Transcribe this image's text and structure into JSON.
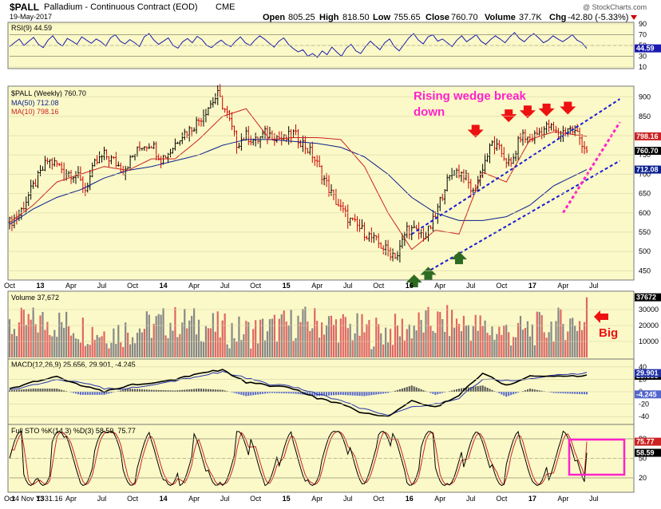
{
  "header": {
    "symbol": "$PALL",
    "name": "Palladium - Continuous Contract (EOD)",
    "exchange": "CME",
    "date": "19-May-2017",
    "watermark": "@ StockCharts.com",
    "open_label": "Open",
    "open": "805.25",
    "high_label": "High",
    "high": "818.50",
    "low_label": "Low",
    "low": "755.65",
    "close_label": "Close",
    "close": "760.70",
    "volume_label": "Volume",
    "volume": "37.7K",
    "chg_label": "Chg",
    "chg": "-42.80 (-5.33%)"
  },
  "footer": {
    "readout": "14 Nov Y:-31.16"
  },
  "annotations": {
    "wedge_text_line1": "Rising wedge break",
    "wedge_text_line2": "down",
    "big_text": "Big"
  },
  "colors": {
    "panel_bg": "#fbf9c7",
    "price_up": "#000000",
    "price_down": "#cc0000",
    "ma50": "#0a1f8f",
    "ma10": "#cc2222",
    "annotation": "#ff22cc",
    "arrow_red": "#ee1111",
    "arrow_green": "#2e6b22",
    "trendline": "#1a1ad6"
  },
  "chart_data": [
    {
      "type": "line",
      "panel": "rsi",
      "legend": "RSI(9) 44.59",
      "ylim": [
        10,
        90
      ],
      "ticks": [
        90,
        70,
        50,
        30,
        10
      ],
      "last_value_label": "44.59",
      "x_weeks": [
        0,
        6,
        12,
        18,
        24,
        30,
        36,
        42,
        48,
        54,
        60,
        66,
        72,
        78,
        84,
        90,
        96,
        102,
        108,
        114,
        120,
        126,
        132,
        138,
        144,
        150,
        156,
        162,
        168,
        174,
        180,
        186,
        192,
        198,
        204,
        210,
        216,
        222,
        228,
        234,
        240,
        246,
        252,
        258,
        264,
        270,
        276,
        282,
        288,
        294,
        300,
        306,
        312,
        318,
        324,
        330,
        336,
        342,
        348,
        354,
        360,
        366,
        372,
        378,
        384,
        390,
        396,
        402,
        408,
        414,
        420,
        426,
        432,
        438,
        444,
        450,
        456,
        462,
        468,
        474,
        480,
        486,
        492,
        498,
        504,
        510,
        516,
        522,
        528,
        534,
        540,
        546,
        552,
        558,
        564,
        570,
        576,
        582,
        588,
        594,
        600,
        606,
        612,
        618,
        624,
        630,
        636,
        642,
        648,
        654,
        660,
        666,
        672,
        678,
        684,
        690,
        696,
        702,
        708,
        714,
        720
      ],
      "values": [
        48,
        55,
        62,
        50,
        58,
        65,
        52,
        46,
        60,
        68,
        55,
        49,
        63,
        58,
        52,
        66,
        60,
        54,
        62,
        57,
        49,
        64,
        70,
        58,
        53,
        61,
        55,
        48,
        66,
        72,
        60,
        52,
        58,
        64,
        50,
        45,
        57,
        63,
        55,
        67,
        61,
        50,
        46,
        54,
        60,
        52,
        48,
        58,
        66,
        55,
        50,
        60,
        68,
        62,
        54,
        47,
        58,
        64,
        52,
        44,
        38,
        42,
        30,
        35,
        28,
        40,
        33,
        47,
        38,
        30,
        45,
        52,
        40,
        35,
        48,
        58,
        50,
        42,
        55,
        62,
        48,
        40,
        52,
        64,
        72,
        60,
        53,
        66,
        70,
        58,
        62,
        55,
        48,
        60,
        68,
        57,
        63,
        70,
        58,
        52,
        61,
        68,
        62,
        55,
        66,
        74,
        63,
        57,
        66,
        72,
        64,
        55,
        60,
        68,
        62,
        57,
        63,
        70,
        60,
        55,
        44.59
      ]
    },
    {
      "type": "candlestick",
      "panel": "price",
      "legend": "$PALL (Weekly) 760.70",
      "ma_legends": [
        "MA(50) 712.08",
        "MA(10) 798.16"
      ],
      "ylim": [
        430,
        920
      ],
      "ticks": [
        900,
        850,
        800,
        750,
        700,
        650,
        600,
        550,
        500,
        450
      ],
      "last_value_labels": [
        "798.16",
        "760.70",
        "712.08"
      ],
      "x_tick_labels": [
        "Oct",
        "13",
        "Apr",
        "Jul",
        "Oct",
        "14",
        "Apr",
        "Jul",
        "Oct",
        "15",
        "Apr",
        "Jul",
        "Oct",
        "16",
        "Apr",
        "Jul",
        "Oct",
        "17",
        "Apr",
        "Jul"
      ],
      "x_ticks": [
        0,
        13,
        26,
        39,
        52,
        65,
        78,
        91,
        104,
        117,
        130,
        143,
        156,
        169,
        182,
        195,
        208,
        221,
        234,
        247
      ],
      "close_anchors": {
        "week": [
          0,
          4,
          8,
          12,
          16,
          20,
          24,
          28,
          32,
          36,
          40,
          44,
          48,
          52,
          56,
          60,
          64,
          68,
          72,
          76,
          80,
          84,
          88,
          92,
          96,
          100,
          104,
          108,
          112,
          116,
          120,
          124,
          128,
          132,
          136,
          140,
          144,
          148,
          152,
          156,
          160,
          164,
          168,
          172,
          176,
          180,
          184,
          188,
          192,
          196,
          200,
          204,
          208,
          212,
          216,
          220,
          224,
          228,
          232,
          236,
          240,
          244
        ],
        "close": [
          575,
          595,
          645,
          690,
          735,
          725,
          705,
          700,
          660,
          725,
          750,
          735,
          710,
          745,
          775,
          780,
          740,
          760,
          800,
          815,
          840,
          875,
          905,
          855,
          780,
          800,
          785,
          805,
          800,
          790,
          805,
          780,
          750,
          700,
          650,
          610,
          580,
          560,
          540,
          520,
          500,
          490,
          560,
          550,
          540,
          590,
          670,
          710,
          700,
          650,
          720,
          780,
          755,
          720,
          800,
          790,
          810,
          825,
          800,
          820,
          805,
          760.7
        ]
      },
      "ma50_anchors": {
        "week": [
          0,
          10,
          20,
          30,
          40,
          50,
          60,
          70,
          80,
          90,
          100,
          110,
          120,
          130,
          140,
          150,
          160,
          170,
          180,
          190,
          200,
          210,
          220,
          230,
          244
        ],
        "value": [
          570,
          610,
          640,
          660,
          690,
          710,
          720,
          735,
          750,
          775,
          790,
          790,
          785,
          780,
          770,
          745,
          700,
          640,
          600,
          580,
          580,
          590,
          620,
          670,
          712.08
        ]
      },
      "ma10_anchors": {
        "week": [
          0,
          10,
          20,
          30,
          40,
          50,
          60,
          70,
          80,
          90,
          100,
          110,
          120,
          130,
          140,
          150,
          160,
          170,
          180,
          190,
          200,
          210,
          220,
          230,
          244
        ],
        "value": [
          575,
          620,
          680,
          700,
          720,
          710,
          740,
          740,
          790,
          850,
          870,
          790,
          795,
          795,
          790,
          720,
          600,
          505,
          555,
          545,
          705,
          680,
          790,
          810,
          798.16
        ]
      }
    },
    {
      "type": "bar",
      "panel": "volume",
      "legend": "Volume 37,672",
      "ylim": [
        0,
        40000
      ],
      "ticks": [
        30000,
        20000,
        10000
      ],
      "last_value_label": "37672",
      "weeks": 245,
      "last_value": 37672
    },
    {
      "type": "line",
      "panel": "macd",
      "legend": "MACD(12,26,9) 25.656, 29.901, -4.245",
      "ylim": [
        -50,
        50
      ],
      "ticks": [
        40,
        20,
        0,
        -20,
        -40
      ],
      "last_value_labels": [
        "25.656",
        "29.901",
        "-4.245"
      ],
      "macd_anchors": {
        "week": [
          0,
          10,
          20,
          30,
          40,
          50,
          60,
          70,
          80,
          90,
          100,
          110,
          120,
          130,
          140,
          150,
          160,
          170,
          180,
          190,
          200,
          210,
          220,
          230,
          244
        ],
        "value": [
          5,
          15,
          25,
          10,
          0,
          10,
          15,
          20,
          30,
          35,
          15,
          10,
          5,
          -10,
          -20,
          -35,
          -40,
          -15,
          -25,
          -5,
          30,
          10,
          25,
          25,
          25.656
        ]
      },
      "signal_anchors": {
        "week": [
          0,
          10,
          20,
          30,
          40,
          50,
          60,
          70,
          80,
          90,
          100,
          110,
          120,
          130,
          140,
          150,
          160,
          170,
          180,
          190,
          200,
          210,
          220,
          230,
          244
        ],
        "value": [
          3,
          10,
          20,
          15,
          5,
          5,
          12,
          18,
          25,
          32,
          22,
          12,
          8,
          -3,
          -15,
          -28,
          -38,
          -25,
          -20,
          -10,
          20,
          18,
          20,
          27,
          29.901
        ]
      }
    },
    {
      "type": "line",
      "panel": "sto",
      "legend": "Full STO %K(14,3) %D(3) 58.59, 75.77",
      "ylim": [
        0,
        100
      ],
      "ticks": [
        80,
        50,
        20
      ],
      "last_value_labels": [
        "75.77",
        "58.59"
      ]
    }
  ]
}
